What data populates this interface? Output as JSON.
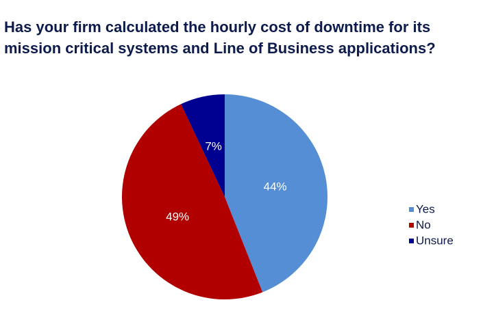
{
  "chart_data": {
    "type": "pie",
    "title": [
      "Has your firm calculated the hourly cost of downtime for its",
      "mission critical systems and Line of Business applications?"
    ],
    "categories": [
      "Yes",
      "No",
      "Unsure"
    ],
    "values": [
      44,
      49,
      7
    ],
    "value_labels": [
      "44%",
      "49%",
      "7%"
    ],
    "colors": [
      "#558ed5",
      "#b00000",
      "#000090"
    ],
    "legend": "right"
  }
}
